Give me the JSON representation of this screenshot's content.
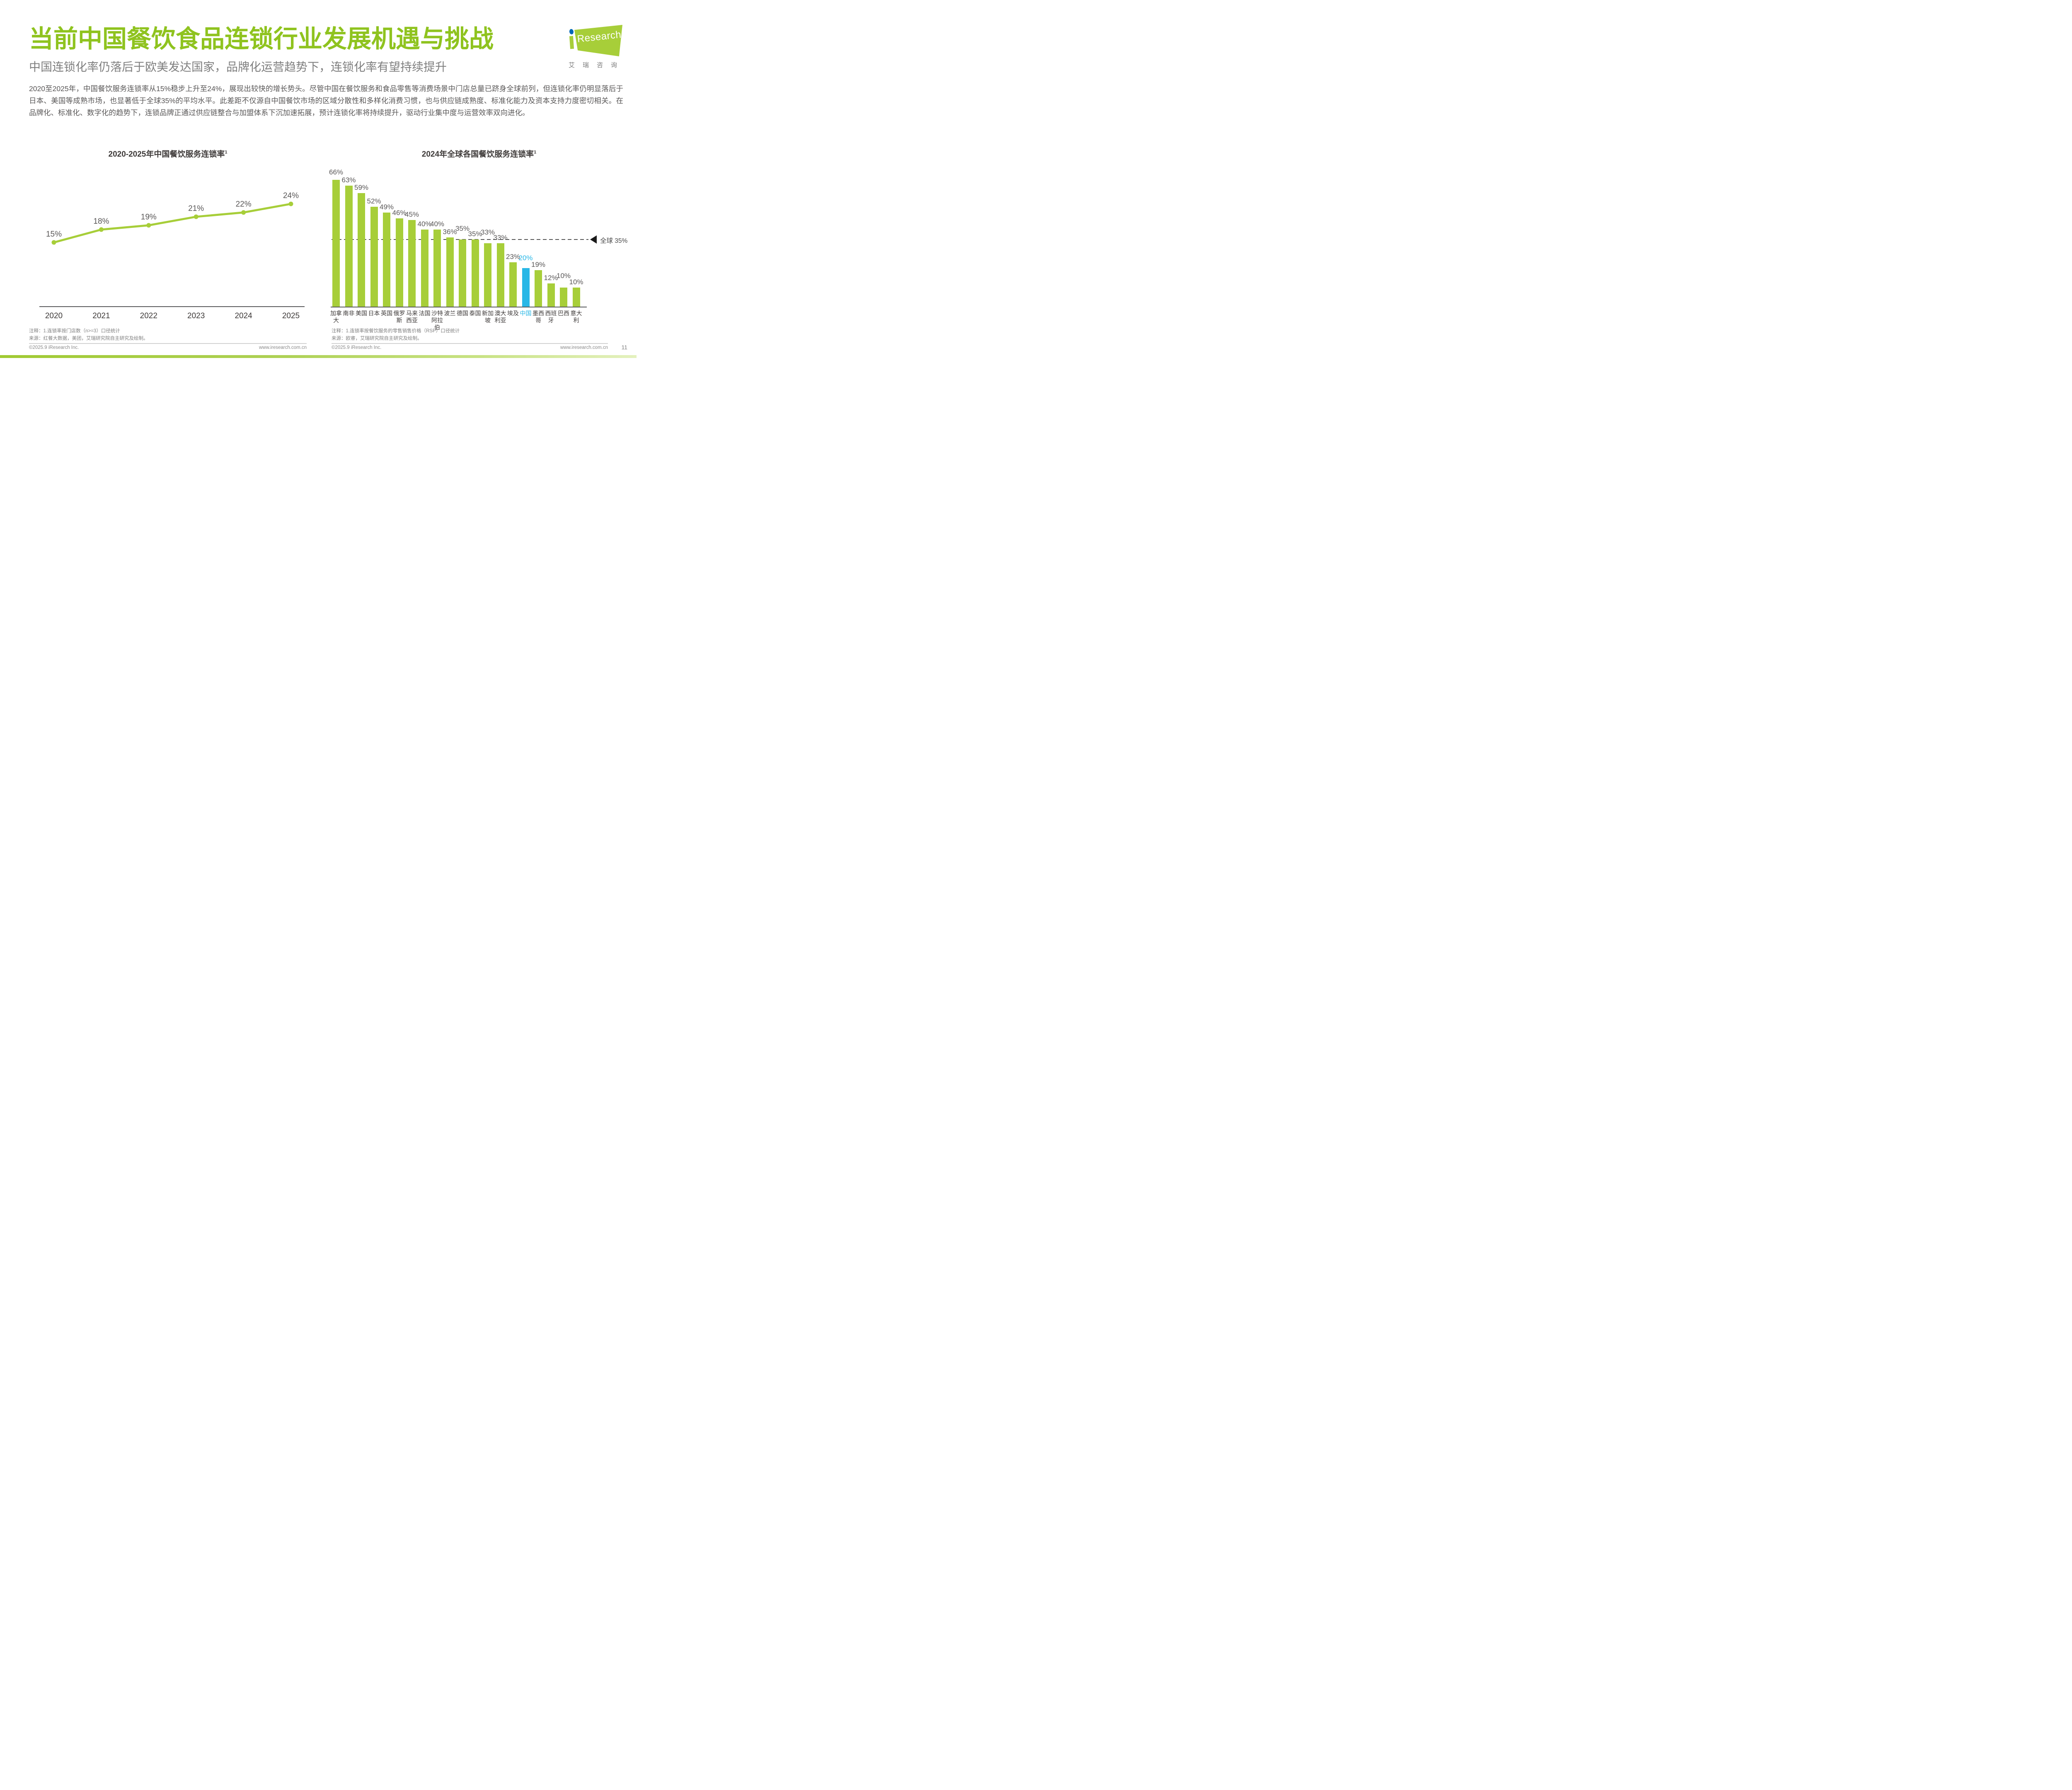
{
  "page": {
    "title": "当前中国餐饮食品连锁行业发展机遇与挑战",
    "subtitle": "中国连锁化率仍落后于欧美发达国家，品牌化运营趋势下，连锁化率有望持续提升",
    "body": "2020至2025年，中国餐饮服务连锁率从15%稳步上升至24%，展现出较快的增长势头。尽管中国在餐饮服务和食品零售等消费场景中门店总量已跻身全球前列，但连锁化率仍明显落后于日本、美国等成熟市场，也显著低于全球35%的平均水平。此差距不仅源自中国餐饮市场的区域分散性和多样化消费习惯，也与供应链成熟度、标准化能力及资本支持力度密切相关。在品牌化、标准化、数字化的趋势下，连锁品牌正通过供应链整合与加盟体系下沉加速拓展，预计连锁化率将持续提升，驱动行业集中度与运营效率双向进化。"
  },
  "logo": {
    "brand_i": "i",
    "brand_rest": "Research",
    "caption": "艾瑞咨询"
  },
  "colors": {
    "title_green": "#8fc31f",
    "chart_green": "#a7ce39",
    "highlight_blue": "#29b7e6",
    "logo_dot_blue": "#0068b7"
  },
  "chart_data": [
    {
      "type": "line",
      "title": "2020-2025年中国餐饮服务连锁率",
      "title_superscript": "1",
      "categories": [
        "2020",
        "2021",
        "2022",
        "2023",
        "2024",
        "2025"
      ],
      "values": [
        15,
        18,
        19,
        21,
        22,
        24
      ],
      "unit": "%",
      "ylim": [
        0,
        30
      ],
      "line_color": "#a7ce39",
      "grid": "off",
      "note": "注释：1.连锁率按门店数（n>=3）口径统计",
      "source": "来源：红餐大数据，美团，艾瑞研究院自主研究及绘制。"
    },
    {
      "type": "bar",
      "title": "2024年全球各国餐饮服务连锁率",
      "title_superscript": "1",
      "categories": [
        "加拿大",
        "南非",
        "美国",
        "日本",
        "英国",
        "俄罗斯",
        "马来西亚",
        "法国",
        "沙特阿拉伯",
        "波兰",
        "德国",
        "泰国",
        "新加坡",
        "澳大利亚",
        "埃及",
        "中国",
        "墨西哥",
        "西班牙",
        "巴西",
        "意大利"
      ],
      "values": [
        66,
        63,
        59,
        52,
        49,
        46,
        45,
        40,
        40,
        36,
        35,
        35,
        33,
        33,
        23,
        20,
        19,
        12,
        10,
        10
      ],
      "unit": "%",
      "ylim": [
        0,
        70
      ],
      "bar_color": "#a7ce39",
      "highlight_index": 15,
      "highlight_color": "#29b7e6",
      "grid": "off",
      "reference_line": {
        "value": 35,
        "label": "全球 35%"
      },
      "note": "注释：1.连锁率按餐饮服务的零售销售价格（RSP）口径统计",
      "source": "来源：欧睿，艾瑞研究院自主研究及绘制。"
    }
  ],
  "footer": {
    "copyright": "©2025.9 iResearch Inc.",
    "website": "www.iresearch.com.cn",
    "page_number": "11"
  }
}
